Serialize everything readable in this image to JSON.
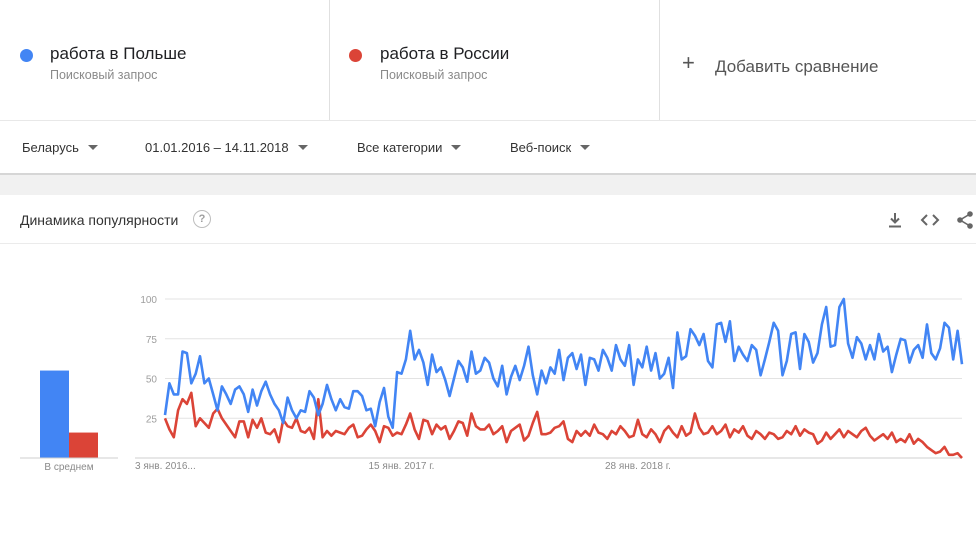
{
  "terms": [
    {
      "name": "работа в Польше",
      "type": "Поисковый запрос",
      "color": "#4285f4"
    },
    {
      "name": "работа в России",
      "type": "Поисковый запрос",
      "color": "#db4437"
    }
  ],
  "add_compare": {
    "label": "Добавить сравнение",
    "icon": "plus-icon"
  },
  "filters": {
    "region": "Беларусь",
    "period": "01.01.2016 – 14.11.2018",
    "category": "Все категории",
    "search_type": "Веб-поиск"
  },
  "card": {
    "title": "Динамика популярности",
    "help": "?",
    "tools": [
      "download-icon",
      "embed-icon",
      "share-icon"
    ]
  },
  "chart_data": {
    "type": "line",
    "y_ticks": [
      25,
      50,
      75,
      100
    ],
    "ylim": [
      0,
      100
    ],
    "x_tick_labels": [
      "3 янв. 2016...",
      "15 янв. 2017 г.",
      "28 янв. 2018 г."
    ],
    "x_tick_index": [
      0,
      54,
      108
    ],
    "grid": true,
    "average_label": "В среднем",
    "averages": [
      55,
      16
    ],
    "series": [
      {
        "name": "работа в Польше",
        "color": "#4285f4",
        "values": [
          27,
          47,
          40,
          40,
          67,
          66,
          47,
          53,
          64,
          47,
          50,
          40,
          30,
          45,
          40,
          34,
          43,
          45,
          40,
          29,
          43,
          33,
          42,
          48,
          40,
          34,
          30,
          22,
          38,
          30,
          25,
          30,
          29,
          42,
          38,
          27,
          34,
          46,
          37,
          30,
          37,
          32,
          31,
          42,
          42,
          39,
          30,
          31,
          20,
          35,
          44,
          26,
          19,
          54,
          53,
          62,
          80,
          62,
          68,
          60,
          46,
          65,
          54,
          57,
          49,
          39,
          50,
          61,
          57,
          48,
          67,
          53,
          55,
          63,
          60,
          50,
          45,
          58,
          40,
          51,
          58,
          49,
          58,
          70,
          52,
          40,
          55,
          47,
          57,
          53,
          68,
          49,
          63,
          66,
          56,
          65,
          46,
          63,
          62,
          55,
          68,
          63,
          55,
          71,
          62,
          58,
          71,
          46,
          62,
          57,
          70,
          55,
          66,
          50,
          53,
          63,
          44,
          79,
          62,
          64,
          81,
          77,
          71,
          78,
          61,
          57,
          84,
          85,
          73,
          86,
          61,
          70,
          65,
          61,
          71,
          68,
          52,
          62,
          73,
          85,
          80,
          52,
          61,
          78,
          79,
          56,
          78,
          73,
          60,
          66,
          84,
          95,
          70,
          71,
          95,
          100,
          72,
          63,
          76,
          72,
          62,
          71,
          62,
          78,
          67,
          70,
          54,
          65,
          75,
          74,
          60,
          68,
          71,
          63,
          84,
          66,
          62,
          69,
          85,
          82,
          62,
          80,
          59
        ],
        "values_note": "",
        "id": "s1"
      },
      {
        "name": "работа в России",
        "color": "#db4437",
        "values": [
          25,
          18,
          13,
          30,
          37,
          34,
          41,
          20,
          25,
          22,
          19,
          28,
          31,
          25,
          21,
          17,
          13,
          23,
          23,
          13,
          24,
          19,
          25,
          16,
          15,
          18,
          10,
          24,
          20,
          19,
          25,
          17,
          16,
          19,
          12,
          37,
          13,
          17,
          14,
          17,
          16,
          15,
          19,
          21,
          13,
          14,
          18,
          21,
          17,
          10,
          20,
          19,
          14,
          16,
          15,
          21,
          28,
          18,
          12,
          24,
          23,
          15,
          21,
          18,
          20,
          12,
          17,
          23,
          22,
          14,
          28,
          20,
          18,
          18,
          21,
          15,
          17,
          20,
          10,
          17,
          19,
          21,
          11,
          14,
          22,
          29,
          15,
          15,
          16,
          19,
          20,
          23,
          12,
          10,
          17,
          14,
          17,
          14,
          21,
          16,
          15,
          12,
          17,
          15,
          20,
          17,
          13,
          14,
          24,
          15,
          13,
          18,
          15,
          10,
          17,
          20,
          16,
          13,
          20,
          14,
          16,
          28,
          19,
          15,
          16,
          20,
          15,
          17,
          21,
          13,
          18,
          16,
          20,
          14,
          12,
          17,
          15,
          12,
          16,
          15,
          12,
          13,
          17,
          15,
          20,
          14,
          18,
          16,
          15,
          9,
          11,
          16,
          12,
          15,
          18,
          13,
          17,
          15,
          13,
          17,
          19,
          14,
          11,
          13,
          15,
          12,
          16,
          10,
          12,
          10,
          15,
          9,
          12,
          10,
          7,
          5,
          3,
          4,
          7,
          2,
          2,
          3,
          0
        ],
        "id": "s2"
      }
    ]
  }
}
